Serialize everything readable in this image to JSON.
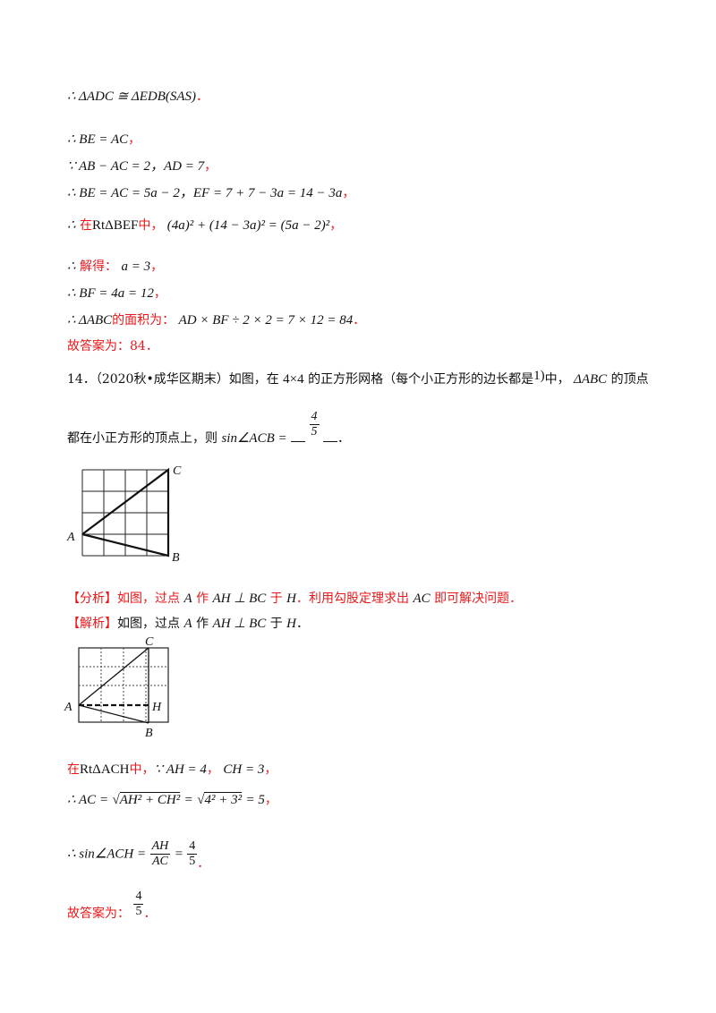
{
  "lines": {
    "l1": "∴ ΔADC ≅ ΔEDB(SAS)",
    "l2": "∴ BE = AC",
    "l3": "∵ AB − AC = 2，AD = 7",
    "l4": "∴ BE = AC = 5a − 2，EF = 7 + 7 − 3a = 14 − 3a",
    "l5_pre": "∴",
    "l5_red1": "在",
    "l5_tri": "RtΔBEF",
    "l5_red2": "中，",
    "l5_eq": "(4a)² + (14 − 3a)² = (5a − 2)²",
    "l6_pre": "∴",
    "l6_red": "解得：",
    "l6_eq": "a = 3",
    "l7": "∴ BF = 4a = 12",
    "l8_pre": "∴ ΔABC",
    "l8_red": "的面积为：",
    "l8_eq": "AD × BF ÷ 2 × 2 = 7 × 12 = 84",
    "l9": "故答案为：84．",
    "comma": "，",
    "period": "．"
  },
  "problem": {
    "number": "14．",
    "source": "（2020秋•成华区期末）",
    "text1": "如图，在",
    "grid": "4×4",
    "text2": "的正方形网格（每个小正方形的边长都是",
    "unit": "1)",
    "text3": "中，",
    "tri": "ΔABC",
    "text4": "的顶点",
    "text5": "都在小正方形的顶点上，则",
    "expr": "sin∠ACB =",
    "ans_num": "4",
    "ans_den": "5",
    "end": "．"
  },
  "figure1": {
    "label_a": "A",
    "label_b": "B",
    "label_c": "C"
  },
  "analysis": {
    "tag": "【分析】",
    "t1": "如图，过点",
    "a": "A",
    "t2": "作",
    "ah": "AH ⊥ BC",
    "t3": "于",
    "h": "H",
    "t4": "．利用勾股定理求出",
    "ac": "AC",
    "t5": "即可解决问题．"
  },
  "solution": {
    "tag": "【解析】",
    "t1": "如图，过点",
    "a": "A",
    "t2": "作",
    "ah": "AH ⊥ BC",
    "t3": "于",
    "h": "H",
    "end": "．"
  },
  "figure2": {
    "label_a": "A",
    "label_b": "B",
    "label_c": "C",
    "label_h": "H"
  },
  "steps": {
    "s1_red1": "在",
    "s1_tri": "RtΔACH",
    "s1_red2": "中，",
    "s1_eq1": "∵ AH = 4",
    "s1_eq2": "CH = 3",
    "s2_pre": "∴ AC =",
    "s2_r1": "AH² + CH²",
    "s2_mid": "=",
    "s2_r2": "4² + 3²",
    "s2_end": "= 5",
    "s3_pre": "∴ sin∠ACH =",
    "s3_n1": "AH",
    "s3_d1": "AC",
    "s3_eq": "=",
    "s3_n2": "4",
    "s3_d2": "5",
    "s4": "故答案为：",
    "s4_n": "4",
    "s4_d": "5",
    "s4_end": "．"
  }
}
